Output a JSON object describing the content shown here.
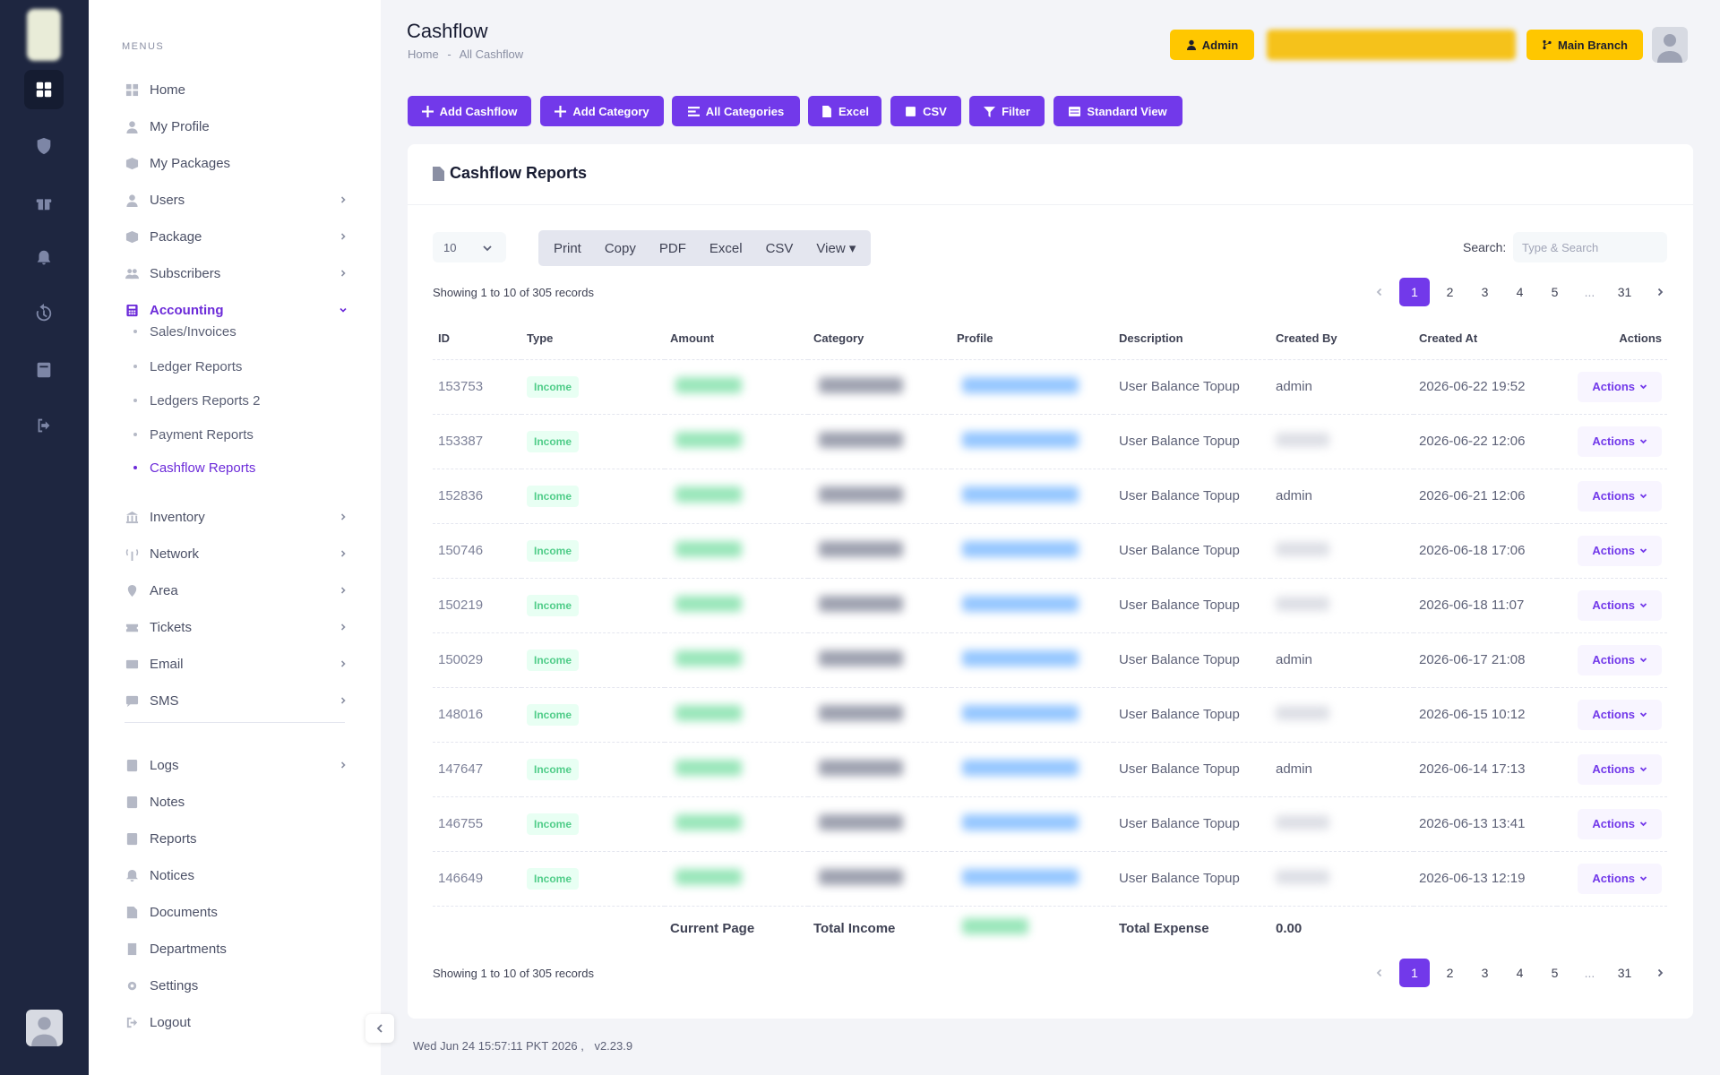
{
  "menu": {
    "title": "MENUS",
    "items": [
      {
        "label": "Home",
        "icon": "home-icon",
        "chevron": false
      },
      {
        "label": "My Profile",
        "icon": "user-icon",
        "chevron": false
      },
      {
        "label": "My Packages",
        "icon": "package-icon",
        "chevron": false
      },
      {
        "label": "Users",
        "icon": "user-icon",
        "chevron": true
      },
      {
        "label": "Package",
        "icon": "package-icon",
        "chevron": true
      },
      {
        "label": "Subscribers",
        "icon": "group-icon",
        "chevron": true
      },
      {
        "label": "Accounting",
        "icon": "calculator-icon",
        "chevron": true,
        "active": true,
        "expanded": true
      },
      {
        "label": "Inventory",
        "icon": "bank-icon",
        "chevron": true
      },
      {
        "label": "Network",
        "icon": "antenna-icon",
        "chevron": true
      },
      {
        "label": "Area",
        "icon": "location-icon",
        "chevron": true
      },
      {
        "label": "Tickets",
        "icon": "ticket-icon",
        "chevron": true
      },
      {
        "label": "Email",
        "icon": "envelope-icon",
        "chevron": true
      },
      {
        "label": "SMS",
        "icon": "message-icon",
        "chevron": true
      },
      {
        "label": "Logs",
        "icon": "log-icon",
        "chevron": true
      },
      {
        "label": "Notes",
        "icon": "note-icon",
        "chevron": false
      },
      {
        "label": "Reports",
        "icon": "report-icon",
        "chevron": false
      },
      {
        "label": "Notices",
        "icon": "bell-icon",
        "chevron": false
      },
      {
        "label": "Documents",
        "icon": "document-icon",
        "chevron": false
      },
      {
        "label": "Departments",
        "icon": "building-icon",
        "chevron": false
      },
      {
        "label": "Settings",
        "icon": "gear-icon",
        "chevron": false
      },
      {
        "label": "Logout",
        "icon": "logout-icon",
        "chevron": false
      }
    ],
    "accounting_sub": [
      {
        "label": "Sales/Invoices"
      },
      {
        "label": "Ledger Reports"
      },
      {
        "label": "Ledgers Reports 2"
      },
      {
        "label": "Payment Reports"
      },
      {
        "label": "Cashflow Reports",
        "active": true
      }
    ]
  },
  "header": {
    "title": "Cashflow",
    "breadcrumb": [
      "Home",
      "-",
      "All Cashflow"
    ],
    "admin_label": "Admin",
    "branch_label": "Main Branch"
  },
  "toolbar": {
    "add_cashflow": "Add Cashflow",
    "add_category": "Add Category",
    "all_categories": "All Categories",
    "excel": "Excel",
    "csv": "CSV",
    "filter": "Filter",
    "standard_view": "Standard View"
  },
  "card": {
    "title": "Cashflow Reports",
    "page_length": "10",
    "export_buttons": [
      "Print",
      "Copy",
      "PDF",
      "Excel",
      "CSV",
      "View ▾"
    ],
    "search_label": "Search:",
    "search_placeholder": "Type & Search",
    "showing": "Showing 1 to 10 of 305 records",
    "pages": [
      "1",
      "2",
      "3",
      "4",
      "5",
      "...",
      "31"
    ],
    "current_page": "1",
    "columns": [
      "ID",
      "Type",
      "Amount",
      "Category",
      "Profile",
      "Description",
      "Created By",
      "Created At",
      "Actions"
    ],
    "rows": [
      {
        "id": "153753",
        "type": "Income",
        "description": "User Balance Topup",
        "created_by": "admin",
        "created_at": "2026-06-22 19:52",
        "action": "Actions"
      },
      {
        "id": "153387",
        "type": "Income",
        "description": "User Balance Topup",
        "created_by": "",
        "created_at": "2026-06-22 12:06",
        "action": "Actions"
      },
      {
        "id": "152836",
        "type": "Income",
        "description": "User Balance Topup",
        "created_by": "admin",
        "created_at": "2026-06-21 12:06",
        "action": "Actions"
      },
      {
        "id": "150746",
        "type": "Income",
        "description": "User Balance Topup",
        "created_by": "",
        "created_at": "2026-06-18 17:06",
        "action": "Actions"
      },
      {
        "id": "150219",
        "type": "Income",
        "description": "User Balance Topup",
        "created_by": "",
        "created_at": "2026-06-18 11:07",
        "action": "Actions"
      },
      {
        "id": "150029",
        "type": "Income",
        "description": "User Balance Topup",
        "created_by": "admin",
        "created_at": "2026-06-17 21:08",
        "action": "Actions"
      },
      {
        "id": "148016",
        "type": "Income",
        "description": "User Balance Topup",
        "created_by": "",
        "created_at": "2026-06-15 10:12",
        "action": "Actions"
      },
      {
        "id": "147647",
        "type": "Income",
        "description": "User Balance Topup",
        "created_by": "admin",
        "created_at": "2026-06-14 17:13",
        "action": "Actions"
      },
      {
        "id": "146755",
        "type": "Income",
        "description": "User Balance Topup",
        "created_by": "",
        "created_at": "2026-06-13 13:41",
        "action": "Actions"
      },
      {
        "id": "146649",
        "type": "Income",
        "description": "User Balance Topup",
        "created_by": "",
        "created_at": "2026-06-13 12:19",
        "action": "Actions"
      }
    ],
    "footer": {
      "current_page_label": "Current Page",
      "total_income_label": "Total Income",
      "total_expense_label": "Total Expense",
      "total_expense_value": "0.00"
    }
  },
  "footer": {
    "timestamp": "Wed Jun 24 15:57:11 PKT 2026 ,",
    "version": "v2.23.9"
  },
  "colors": {
    "accent": "#7239ea",
    "warning": "#ffc700",
    "success": "#50cd89",
    "danger": "#f1416c",
    "sidebar_dark": "#1e2640"
  }
}
